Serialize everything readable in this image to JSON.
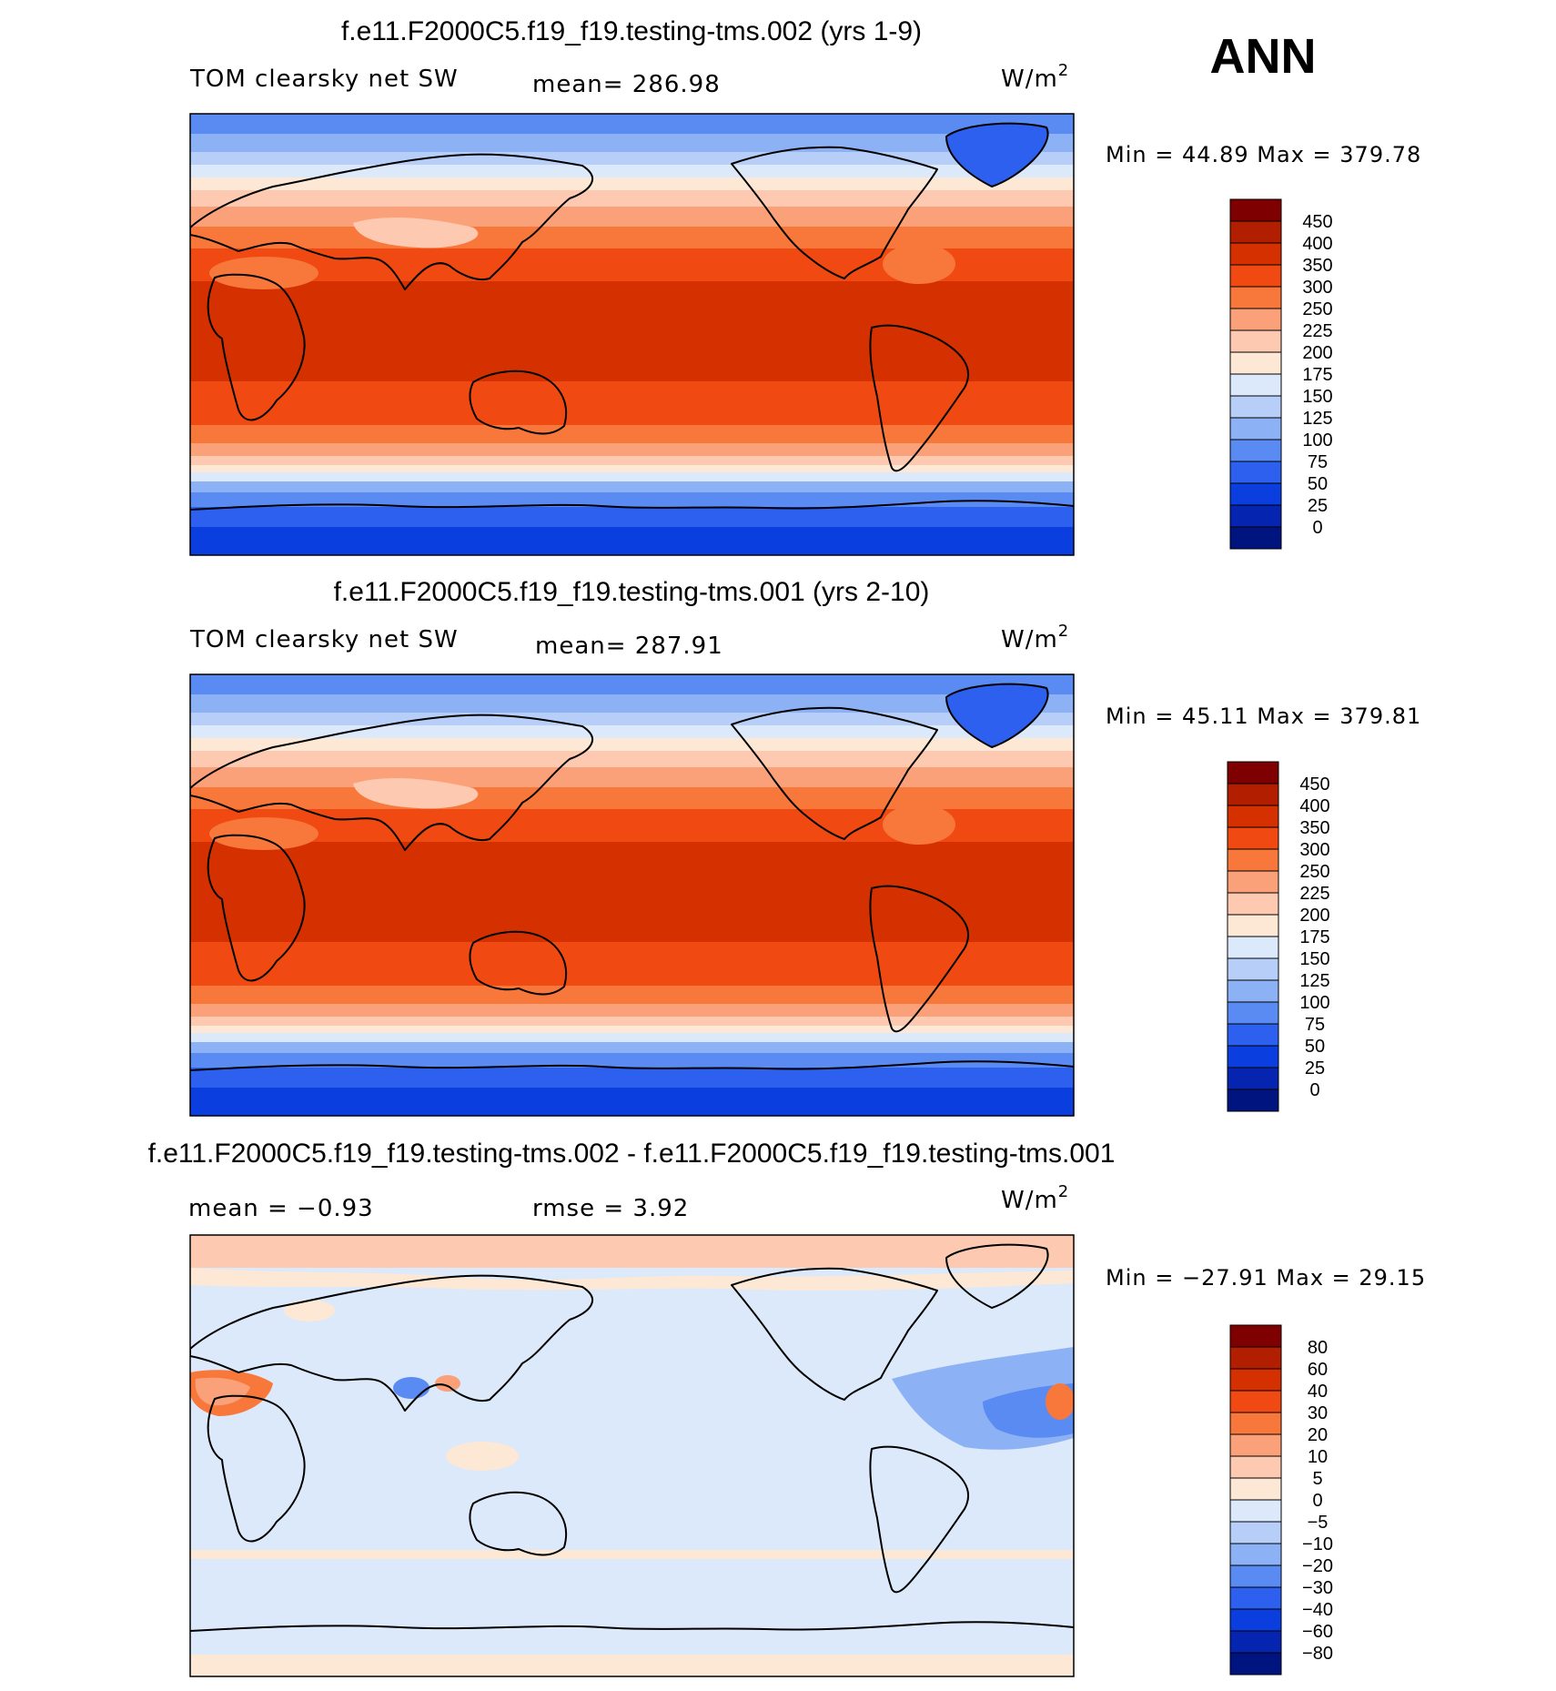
{
  "season_label": "ANN",
  "chart_data": [
    {
      "type": "heatmap",
      "map": "global lat-lon contour map",
      "title": "f.e11.F2000C5.f19_f19.testing-tms.002 (yrs 1-9)",
      "left_label": "TOM clearsky net SW",
      "center_label": "mean=  286.98",
      "units_base": "W/m",
      "units_exp": "2",
      "minmax_label": "Min =   44.89  Max  = 379.78",
      "mean": 286.98,
      "min": 44.89,
      "max": 379.78,
      "colorbar": {
        "levels": [
          "450",
          "400",
          "350",
          "300",
          "250",
          "225",
          "200",
          "175",
          "150",
          "125",
          "100",
          "75",
          "50",
          "25",
          "0"
        ],
        "colors": [
          "#7f0000",
          "#b11f00",
          "#d43000",
          "#f04a12",
          "#f8773b",
          "#fba17a",
          "#fdc9b0",
          "#fde8d6",
          "#dbe9fb",
          "#b7cff8",
          "#8cb1f5",
          "#5a8bf2",
          "#2d60ee",
          "#0a3ede",
          "#0524b0",
          "#001480"
        ]
      }
    },
    {
      "type": "heatmap",
      "map": "global lat-lon contour map",
      "title": "f.e11.F2000C5.f19_f19.testing-tms.001 (yrs 2-10)",
      "left_label": "TOM clearsky net SW",
      "center_label": "mean=  287.91",
      "units_base": "W/m",
      "units_exp": "2",
      "minmax_label": "Min =   45.11  Max  = 379.81",
      "mean": 287.91,
      "min": 45.11,
      "max": 379.81,
      "colorbar": {
        "levels": [
          "450",
          "400",
          "350",
          "300",
          "250",
          "225",
          "200",
          "175",
          "150",
          "125",
          "100",
          "75",
          "50",
          "25",
          "0"
        ],
        "colors": [
          "#7f0000",
          "#b11f00",
          "#d43000",
          "#f04a12",
          "#f8773b",
          "#fba17a",
          "#fdc9b0",
          "#fde8d6",
          "#dbe9fb",
          "#b7cff8",
          "#8cb1f5",
          "#5a8bf2",
          "#2d60ee",
          "#0a3ede",
          "#0524b0",
          "#001480"
        ]
      }
    },
    {
      "type": "heatmap",
      "map": "global lat-lon difference map",
      "title": "f.e11.F2000C5.f19_f19.testing-tms.002 - f.e11.F2000C5.f19_f19.testing-tms.001",
      "left_label": "mean =   −0.93",
      "center_label": "rmse =    3.92",
      "units_base": "W/m",
      "units_exp": "2",
      "minmax_label": "Min = −27.91  Max =   29.15",
      "mean": -0.93,
      "rmse": 3.92,
      "min": -27.91,
      "max": 29.15,
      "colorbar": {
        "levels": [
          "80",
          "60",
          "40",
          "30",
          "20",
          "10",
          "5",
          "0",
          "−5",
          "−10",
          "−20",
          "−30",
          "−40",
          "−60",
          "−80"
        ],
        "colors": [
          "#7f0000",
          "#b11f00",
          "#d43000",
          "#f04a12",
          "#f8773b",
          "#fba17a",
          "#fdc9b0",
          "#fde8d6",
          "#dbe9fb",
          "#b7cff8",
          "#8cb1f5",
          "#5a8bf2",
          "#2d60ee",
          "#0a3ede",
          "#0524b0",
          "#001480"
        ]
      }
    }
  ]
}
